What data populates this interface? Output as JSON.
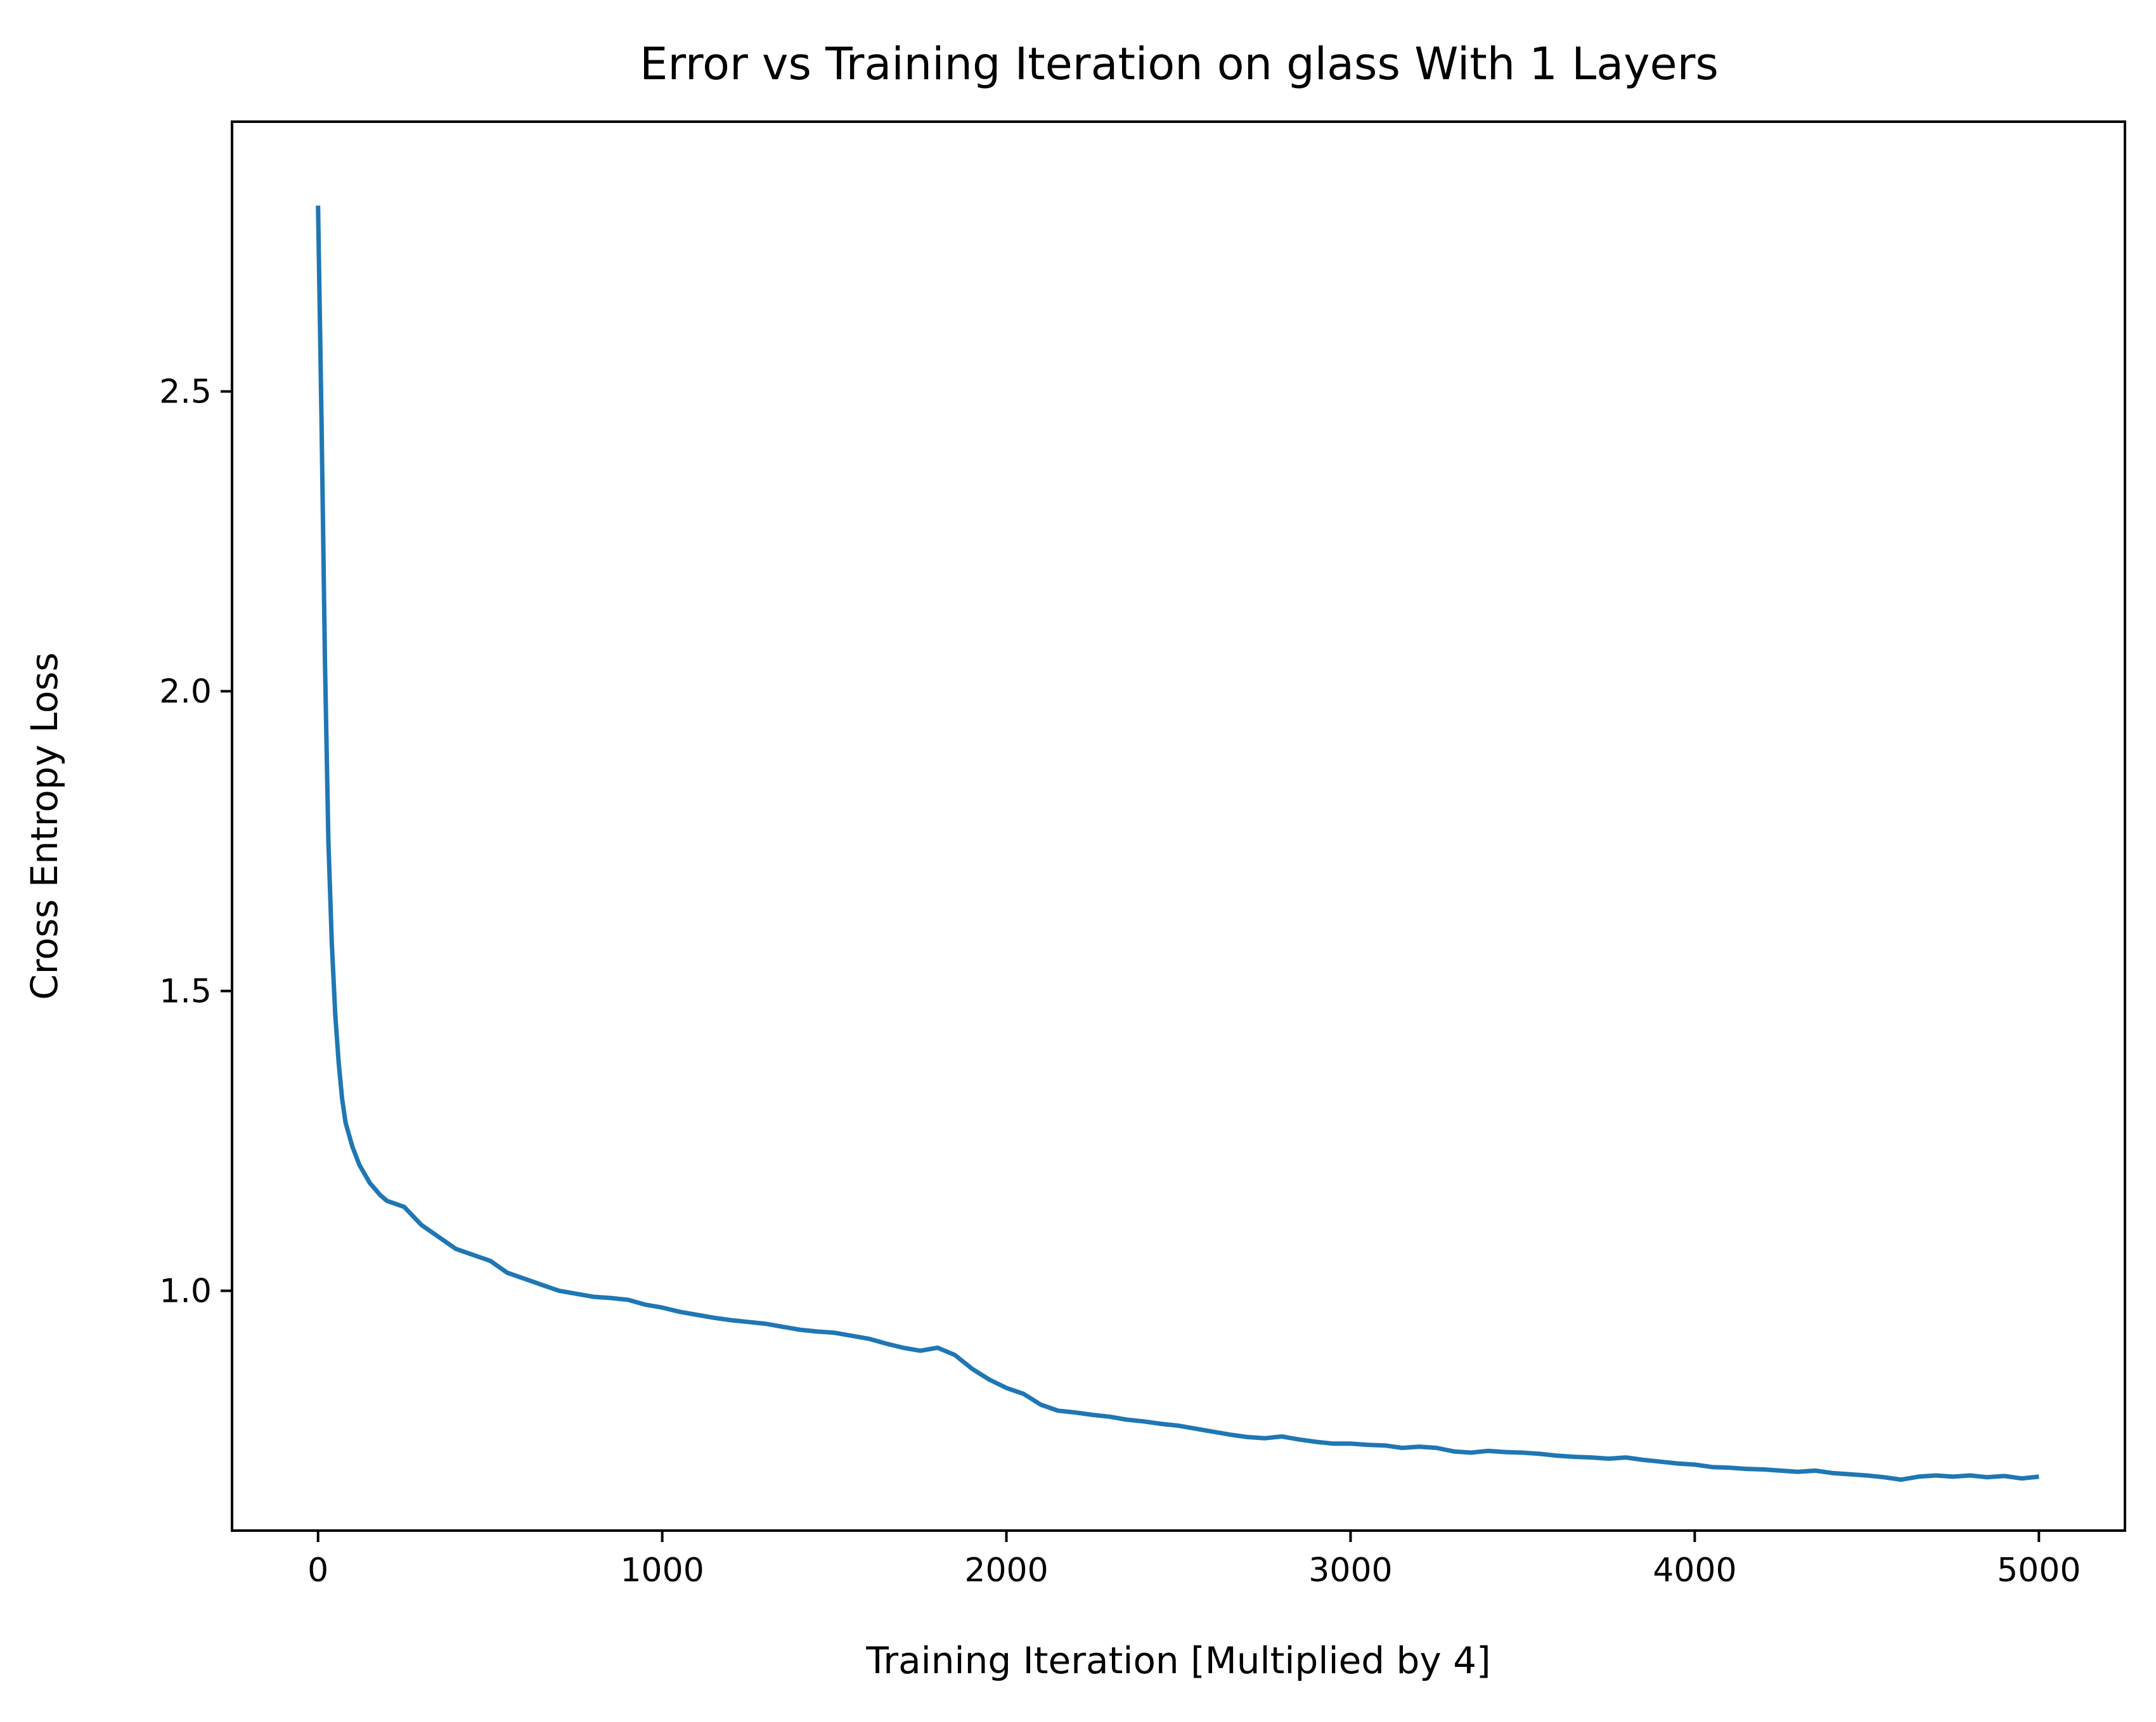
{
  "chart_data": {
    "type": "line",
    "title": "Error vs Training Iteration on glass With 1 Layers",
    "xlabel": "Training Iteration [Multiplied by 4]",
    "ylabel": "Cross Entropy Loss",
    "xlim": [
      -250,
      5250
    ],
    "ylim": [
      0.6,
      2.95
    ],
    "x_ticks": [
      0,
      1000,
      2000,
      3000,
      4000,
      5000
    ],
    "x_tick_labels": [
      "0",
      "1000",
      "2000",
      "3000",
      "4000",
      "5000"
    ],
    "y_ticks": [
      1.0,
      1.5,
      2.0,
      2.5
    ],
    "y_tick_labels": [
      "1.0",
      "1.5",
      "2.0",
      "2.5"
    ],
    "grid": false,
    "series": [
      {
        "name": "loss",
        "color": "#1f77b4",
        "x": [
          0,
          10,
          20,
          30,
          40,
          50,
          60,
          70,
          80,
          90,
          100,
          120,
          150,
          180,
          200,
          250,
          300,
          350,
          400,
          450,
          500,
          550,
          600,
          650,
          700,
          750,
          800,
          850,
          900,
          950,
          1000,
          1050,
          1100,
          1150,
          1200,
          1250,
          1300,
          1350,
          1400,
          1450,
          1500,
          1550,
          1600,
          1650,
          1700,
          1750,
          1800,
          1850,
          1900,
          1950,
          2000,
          2050,
          2100,
          2150,
          2200,
          2250,
          2300,
          2350,
          2400,
          2450,
          2500,
          2550,
          2600,
          2650,
          2700,
          2750,
          2800,
          2850,
          2900,
          2950,
          3000,
          3050,
          3100,
          3150,
          3200,
          3250,
          3300,
          3350,
          3400,
          3450,
          3500,
          3550,
          3600,
          3650,
          3700,
          3750,
          3800,
          3850,
          3900,
          3950,
          4000,
          4050,
          4100,
          4150,
          4200,
          4250,
          4300,
          4350,
          4400,
          4450,
          4500,
          4550,
          4600,
          4650,
          4700,
          4750,
          4800,
          4850,
          4900,
          4950,
          5000
        ],
        "values": [
          2.81,
          2.45,
          2.05,
          1.75,
          1.58,
          1.46,
          1.38,
          1.32,
          1.28,
          1.26,
          1.24,
          1.21,
          1.18,
          1.16,
          1.15,
          1.14,
          1.11,
          1.09,
          1.07,
          1.06,
          1.05,
          1.03,
          1.02,
          1.01,
          1.0,
          0.995,
          0.99,
          0.988,
          0.985,
          0.977,
          0.972,
          0.965,
          0.96,
          0.955,
          0.951,
          0.948,
          0.945,
          0.94,
          0.935,
          0.932,
          0.93,
          0.925,
          0.92,
          0.912,
          0.905,
          0.9,
          0.905,
          0.893,
          0.87,
          0.852,
          0.838,
          0.828,
          0.81,
          0.8,
          0.797,
          0.793,
          0.79,
          0.785,
          0.782,
          0.778,
          0.775,
          0.77,
          0.765,
          0.76,
          0.756,
          0.754,
          0.757,
          0.752,
          0.748,
          0.745,
          0.745,
          0.743,
          0.742,
          0.738,
          0.74,
          0.738,
          0.732,
          0.73,
          0.733,
          0.731,
          0.73,
          0.728,
          0.725,
          0.723,
          0.722,
          0.72,
          0.722,
          0.718,
          0.715,
          0.712,
          0.71,
          0.706,
          0.705,
          0.703,
          0.702,
          0.7,
          0.698,
          0.7,
          0.696,
          0.694,
          0.692,
          0.689,
          0.685,
          0.69,
          0.692,
          0.69,
          0.692,
          0.689,
          0.691,
          0.687,
          0.69
        ]
      }
    ]
  }
}
